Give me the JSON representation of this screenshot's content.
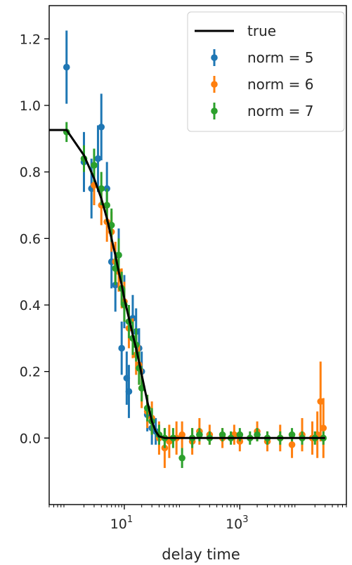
{
  "chart_data": {
    "type": "scatter",
    "title": "",
    "xlabel": "delay time",
    "ylabel": "",
    "xscale": "log",
    "xlim": [
      0.5,
      70000
    ],
    "ylim": [
      -0.2,
      1.3
    ],
    "grid": false,
    "legend_placement": "top-right",
    "x_ticks": [
      {
        "value": 10,
        "label": "10",
        "exp": "1"
      },
      {
        "value": 1000,
        "label": "10",
        "exp": "3"
      }
    ],
    "y_ticks": [
      {
        "value": 0.0,
        "label": "0.0"
      },
      {
        "value": 0.2,
        "label": "0.2"
      },
      {
        "value": 0.4,
        "label": "0.4"
      },
      {
        "value": 0.6,
        "label": "0.6"
      },
      {
        "value": 0.8,
        "label": "0.8"
      },
      {
        "value": 1.0,
        "label": "1.0"
      },
      {
        "value": 1.2,
        "label": "1.2"
      }
    ],
    "true_line": {
      "name": "true",
      "color": "#000000",
      "x": [
        0.5,
        1,
        2,
        3,
        4,
        5,
        6,
        7,
        8,
        9,
        10,
        12,
        14,
        16,
        18,
        20,
        25,
        30,
        35,
        40,
        50,
        70,
        100,
        200,
        500,
        1000,
        5000,
        30000
      ],
      "y": [
        0.926,
        0.926,
        0.85,
        0.78,
        0.72,
        0.66,
        0.6,
        0.55,
        0.5,
        0.46,
        0.42,
        0.36,
        0.31,
        0.27,
        0.23,
        0.19,
        0.11,
        0.05,
        0.02,
        0.005,
        0.0,
        0.0,
        0.0,
        0.0,
        0.0,
        0.0,
        0.0,
        0.0
      ]
    },
    "series": [
      {
        "name": "norm = 5",
        "color": "#1f77b4",
        "x": [
          1,
          2,
          2.7,
          3.5,
          4,
          5,
          6,
          7,
          8,
          9,
          10,
          11,
          12,
          14,
          16,
          18,
          20,
          25,
          30,
          35
        ],
        "y": [
          1.115,
          0.83,
          0.75,
          0.84,
          0.935,
          0.75,
          0.53,
          0.46,
          0.55,
          0.27,
          0.41,
          0.18,
          0.14,
          0.36,
          0.32,
          0.27,
          0.2,
          0.07,
          0.03,
          0.02
        ],
        "err": [
          0.11,
          0.09,
          0.09,
          0.1,
          0.1,
          0.08,
          0.08,
          0.08,
          0.08,
          0.08,
          0.08,
          0.08,
          0.08,
          0.07,
          0.07,
          0.06,
          0.06,
          0.05,
          0.05,
          0.04
        ]
      },
      {
        "name": "norm = 6",
        "color": "#ff7f0e",
        "x": [
          3,
          4,
          5,
          6,
          7,
          8,
          9,
          10,
          12,
          14,
          16,
          18,
          20,
          25,
          30,
          40,
          50,
          60,
          80,
          100,
          150,
          200,
          300,
          500,
          800,
          1000,
          2000,
          3000,
          5000,
          8000,
          12000,
          18000,
          22000,
          25000,
          28000
        ],
        "y": [
          0.76,
          0.7,
          0.65,
          0.62,
          0.53,
          0.5,
          0.45,
          0.41,
          0.33,
          0.3,
          0.25,
          0.22,
          0.15,
          0.08,
          0.06,
          0.0,
          -0.03,
          -0.01,
          0.0,
          0.01,
          -0.01,
          0.02,
          0.01,
          0.0,
          0.01,
          -0.01,
          0.02,
          -0.01,
          0.0,
          -0.02,
          0.01,
          0.0,
          0.01,
          0.11,
          0.03
        ],
        "err": [
          0.06,
          0.06,
          0.06,
          0.06,
          0.06,
          0.06,
          0.06,
          0.06,
          0.06,
          0.06,
          0.06,
          0.06,
          0.06,
          0.05,
          0.05,
          0.05,
          0.06,
          0.05,
          0.05,
          0.04,
          0.04,
          0.04,
          0.03,
          0.03,
          0.03,
          0.03,
          0.03,
          0.03,
          0.04,
          0.04,
          0.05,
          0.05,
          0.07,
          0.12,
          0.09
        ]
      },
      {
        "name": "norm = 7",
        "color": "#2ca02c",
        "x": [
          1,
          2,
          3,
          4,
          5,
          6,
          7,
          8,
          9,
          10,
          12,
          14,
          16,
          18,
          20,
          25,
          30,
          40,
          50,
          70,
          100,
          150,
          200,
          300,
          500,
          700,
          1000,
          1500,
          2000,
          3000,
          5000,
          8000,
          12000,
          20000,
          28000
        ],
        "y": [
          0.92,
          0.84,
          0.82,
          0.75,
          0.7,
          0.64,
          0.51,
          0.55,
          0.45,
          0.4,
          0.35,
          0.3,
          0.28,
          0.21,
          0.15,
          0.09,
          0.05,
          0.01,
          0.0,
          0.0,
          -0.06,
          0.0,
          0.01,
          0.0,
          0.01,
          0.0,
          0.01,
          0.0,
          0.01,
          0.0,
          0.0,
          0.01,
          0.0,
          0.0,
          0.0
        ],
        "err": [
          0.03,
          0.04,
          0.05,
          0.05,
          0.05,
          0.05,
          0.05,
          0.05,
          0.05,
          0.05,
          0.05,
          0.05,
          0.05,
          0.05,
          0.04,
          0.04,
          0.04,
          0.03,
          0.03,
          0.03,
          0.03,
          0.03,
          0.02,
          0.02,
          0.02,
          0.02,
          0.02,
          0.02,
          0.02,
          0.02,
          0.02,
          0.02,
          0.02,
          0.02,
          0.02
        ]
      }
    ]
  }
}
